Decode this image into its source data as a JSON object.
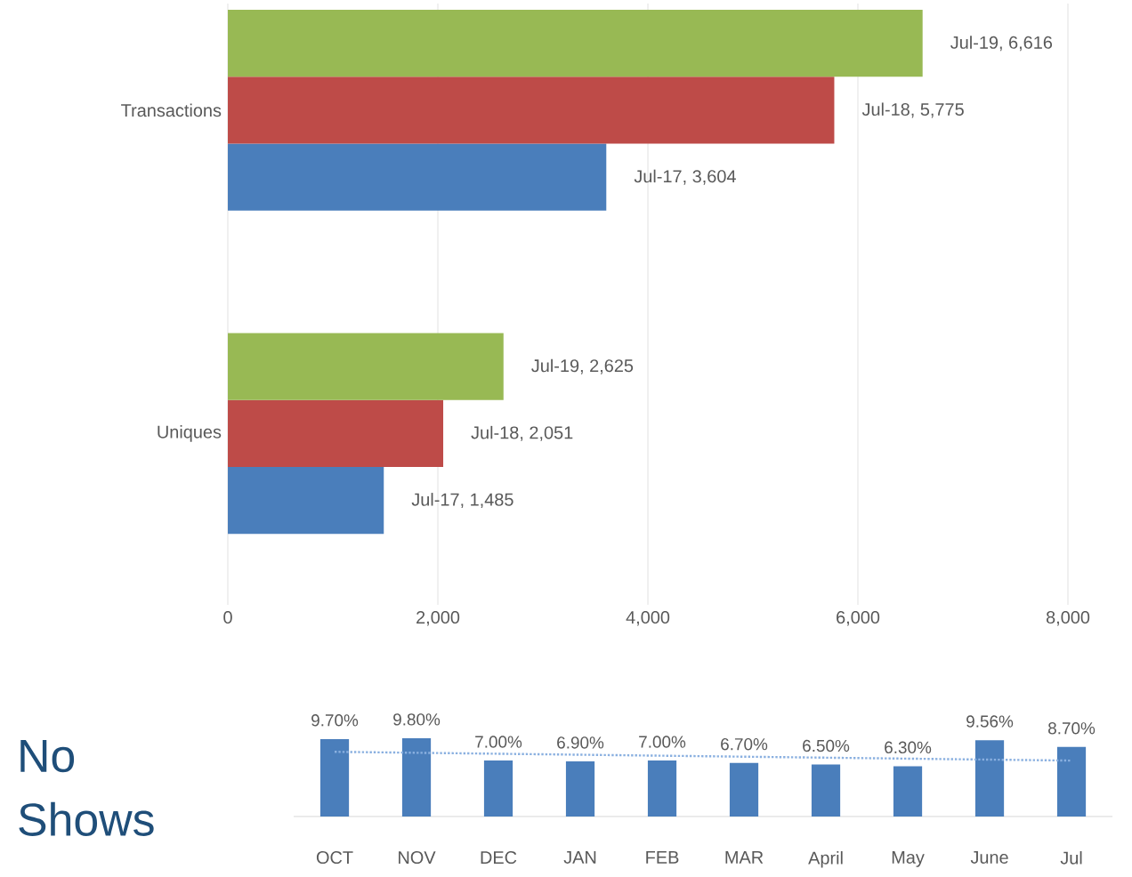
{
  "chart_data": [
    {
      "type": "bar",
      "orientation": "horizontal",
      "categories": [
        "Transactions",
        "Uniques"
      ],
      "series": [
        {
          "color": "#4a7ebb",
          "values": [
            3604,
            1485
          ],
          "value_labels": [
            "Jul-17, 3,604",
            "Jul-17, 1,485"
          ]
        },
        {
          "color": "#be4b48",
          "values": [
            5775,
            2051
          ],
          "value_labels": [
            "Jul-18, 5,775",
            "Jul-18, 2,051"
          ]
        },
        {
          "color": "#98b954",
          "values": [
            6616,
            2625
          ],
          "value_labels": [
            "Jul-19, 6,616",
            "Jul-19, 2,625"
          ]
        }
      ],
      "xlim": [
        0,
        8000
      ],
      "xticks": [
        0,
        {
          "value": 2000,
          "label": "2,000"
        },
        {
          "value": 4000,
          "label": "4,000"
        },
        {
          "value": 6000,
          "label": "6,000"
        },
        {
          "value": 8000,
          "label": "8,000"
        }
      ],
      "grid": "x"
    },
    {
      "type": "bar",
      "title": "No Shows",
      "categories": [
        "OCT",
        "NOV",
        "DEC",
        "JAN",
        "FEB",
        "MAR",
        "April",
        "May",
        "June",
        "Jul"
      ],
      "series": [
        {
          "type": "bar",
          "color": "#4a7ebb",
          "values": [
            9.7,
            9.8,
            7.0,
            6.9,
            7.0,
            6.7,
            6.5,
            6.3,
            9.56,
            8.7
          ],
          "value_labels": [
            "9.70%",
            "9.80%",
            "7.00%",
            "6.90%",
            "7.00%",
            "6.70%",
            "6.50%",
            "6.30%",
            "9.56%",
            "8.70%"
          ]
        },
        {
          "type": "line",
          "x": [
            "OCT",
            "Jul"
          ],
          "color": "#8ab0e0",
          "line_style": "dotted",
          "values": [
            8.1,
            7.0
          ]
        }
      ],
      "tick_labels": "x"
    }
  ]
}
